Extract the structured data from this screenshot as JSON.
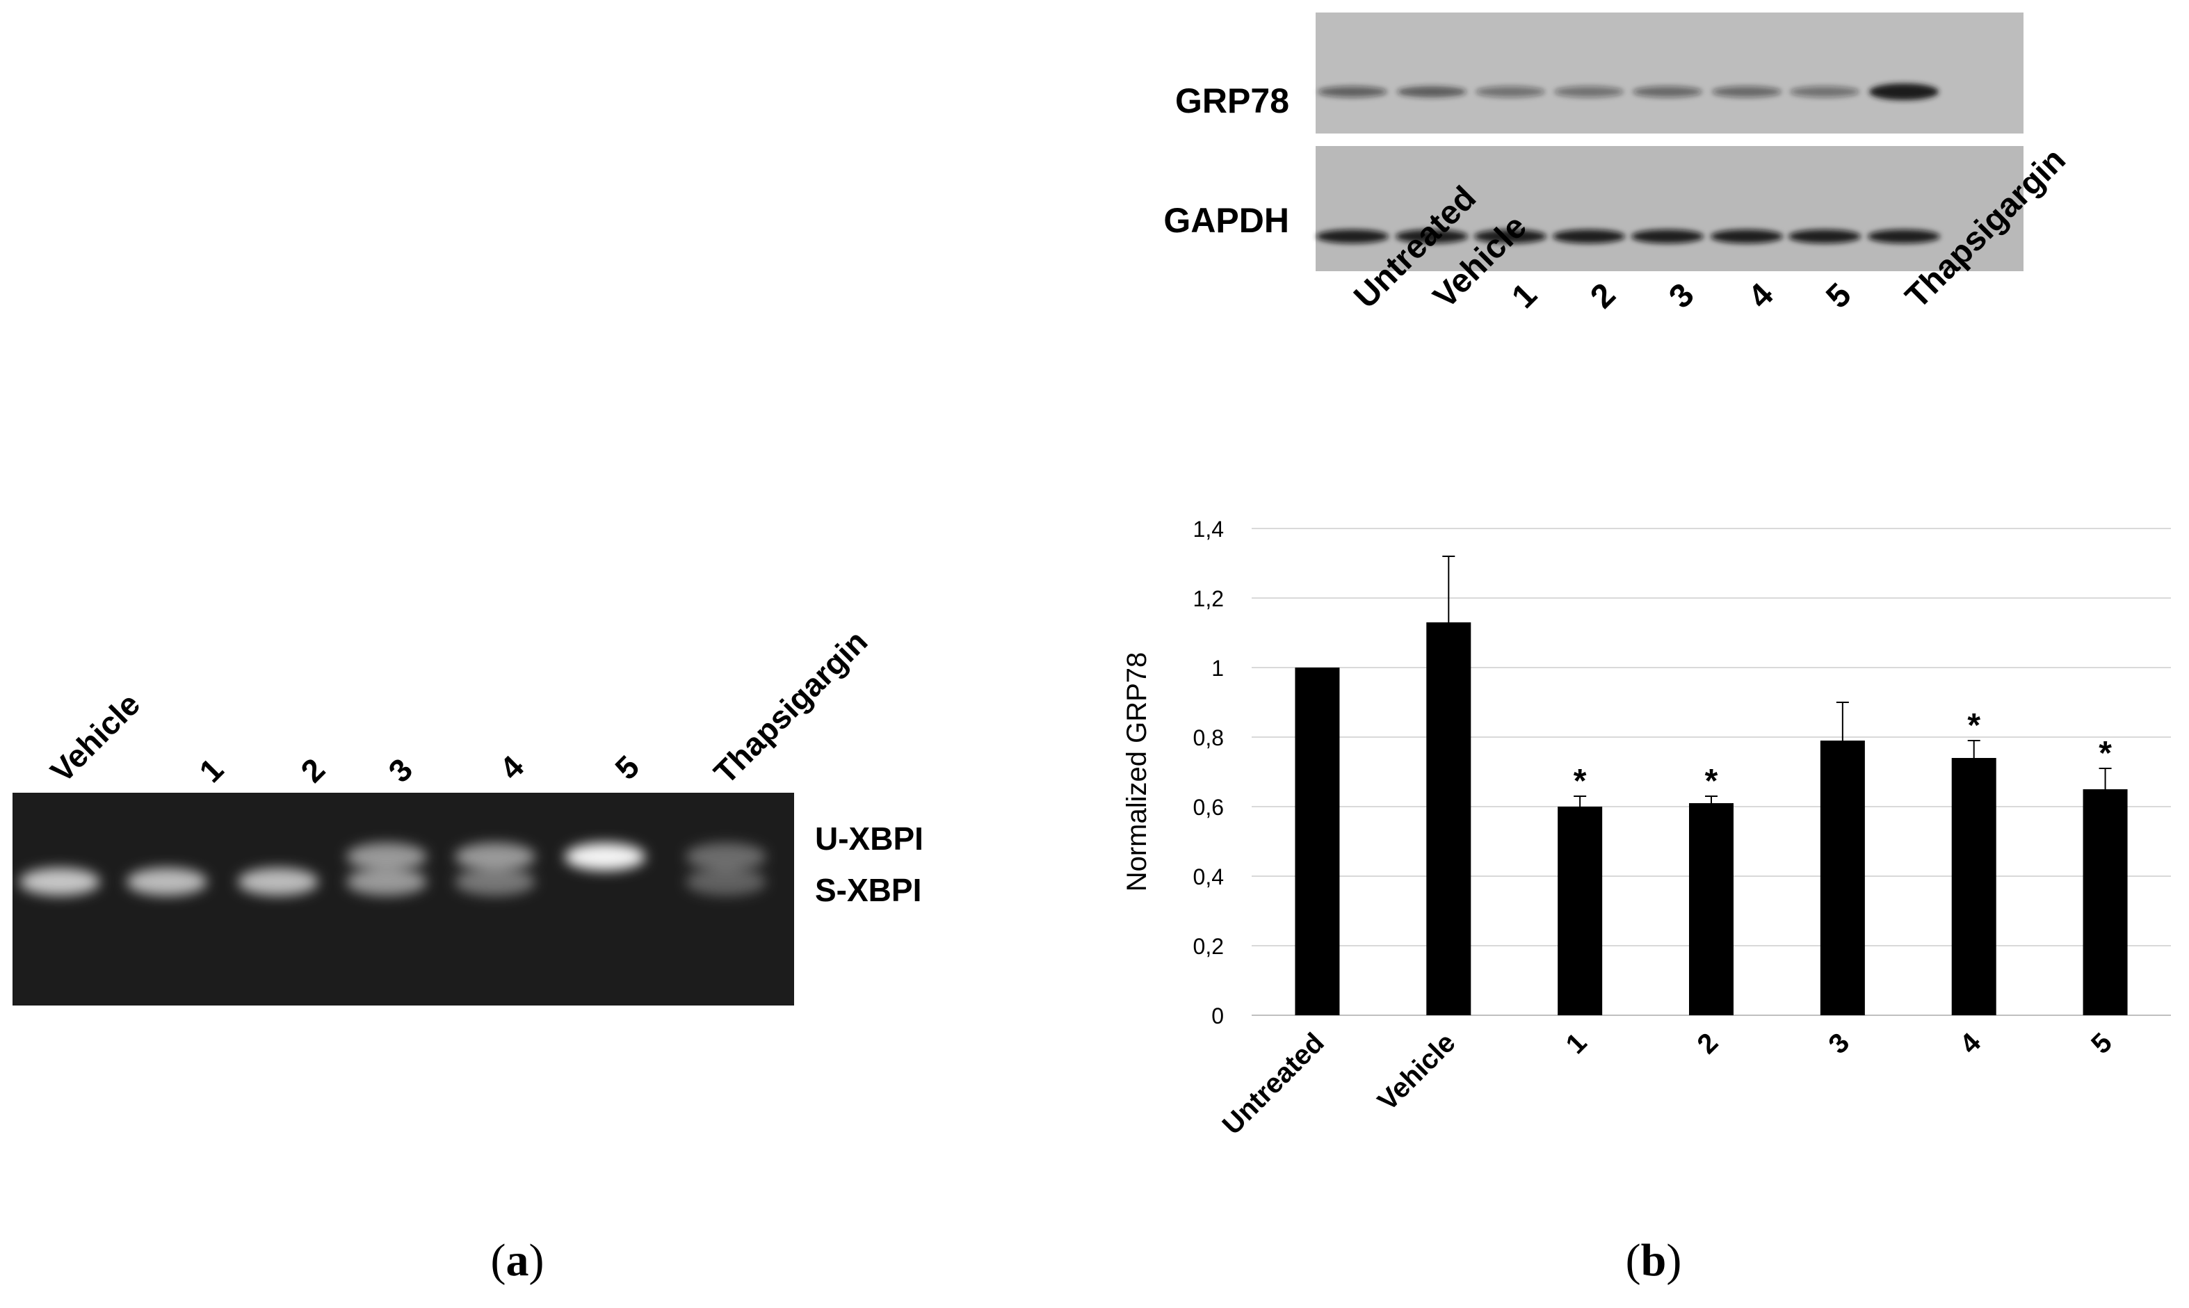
{
  "panel_a": {
    "caption_letter": "a",
    "lane_labels": [
      "Vehicle",
      "1",
      "2",
      "3",
      "4",
      "5",
      "Thapsigargin"
    ],
    "band_labels": [
      "U-XBPI",
      "S-XBPI"
    ]
  },
  "panel_b": {
    "caption_letter": "b",
    "blot_rows": [
      "GRP78",
      "GAPDH"
    ],
    "lane_labels": [
      "Untreated",
      "Vehicle",
      "1",
      "2",
      "3",
      "4",
      "5",
      "Thapsigargin"
    ]
  },
  "chart_data": {
    "type": "bar",
    "categories": [
      "Untreated",
      "Vehicle",
      "1",
      "2",
      "3",
      "4",
      "5"
    ],
    "values": [
      1.0,
      1.13,
      0.6,
      0.61,
      0.79,
      0.74,
      0.65
    ],
    "errors": [
      0,
      0.19,
      0.03,
      0.02,
      0.11,
      0.05,
      0.06
    ],
    "significant": [
      false,
      false,
      true,
      true,
      false,
      true,
      true
    ],
    "significance_marker": "*",
    "ylabel": "Normalized GRP78",
    "xlabel": "",
    "ylim": [
      0,
      1.4
    ],
    "yticks": [
      "0",
      "0,2",
      "0,4",
      "0,6",
      "0,8",
      "1",
      "1,2",
      "1,4"
    ],
    "grid": true,
    "bar_color": "#000000",
    "grid_color": "#d9d9d9"
  }
}
